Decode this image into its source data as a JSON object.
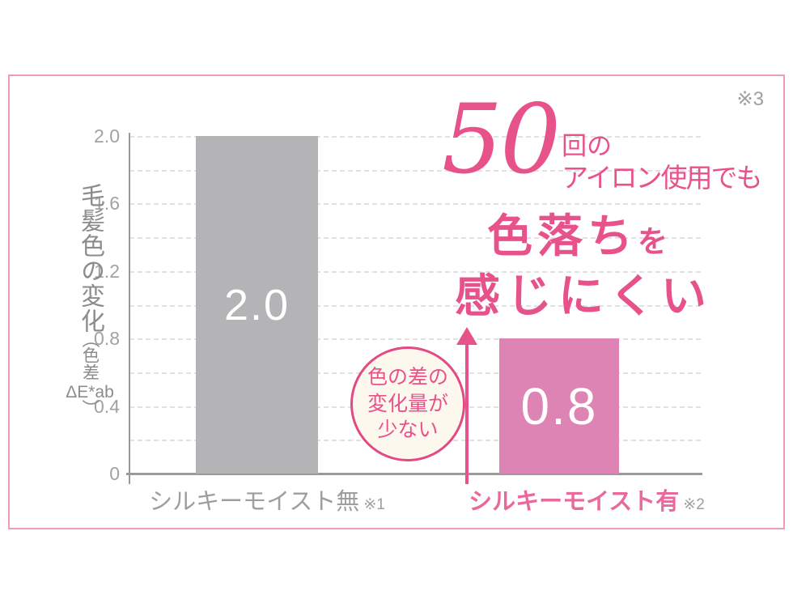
{
  "footnote_ref": "※3",
  "colors": {
    "accent_pink": "#e7528b",
    "label_pink": "#e9699c",
    "frame_pink": "#ef9cb8",
    "bar_gray": "#b4b4b6",
    "bar_pink": "#de84b4",
    "circle_fill": "#fdf8ee"
  },
  "chart_data": {
    "type": "bar",
    "title": "50回のアイロン使用でも色落ちを感じにくい",
    "title_parts": {
      "number": "50",
      "number_suffix": "回の",
      "line2": "アイロン使用でも",
      "emphasis": "色落ち",
      "particle": "を",
      "line4": "感じにくい"
    },
    "categories": [
      "シルキーモイスト無",
      "シルキーモイスト有"
    ],
    "category_refs": [
      "※1",
      "※2"
    ],
    "category_colors": [
      "#9e9e9e",
      "#e9699c"
    ],
    "values": [
      2.0,
      0.8
    ],
    "bar_labels": [
      "2.0",
      "0.8"
    ],
    "bar_colors": [
      "#b4b4b6",
      "#de84b4"
    ],
    "ylabel": {
      "main": "毛髪色の変化",
      "paren_open": "（",
      "sub": "色差",
      "unit": "ΔE*ab",
      "paren_close": "）"
    },
    "ylim": [
      0,
      2.0
    ],
    "yticks": [
      0,
      0.4,
      0.8,
      1.2,
      1.6,
      2.0
    ],
    "ytick_labels": [
      "0",
      "0.4",
      "0.8",
      "1.2",
      "1.6",
      "2.0"
    ],
    "grid_interval": 0.2,
    "grid_style": "dashed",
    "legend": "none",
    "annotation": {
      "text": [
        "色の差の",
        "変化量が",
        "少ない"
      ],
      "arrow": "up"
    }
  }
}
